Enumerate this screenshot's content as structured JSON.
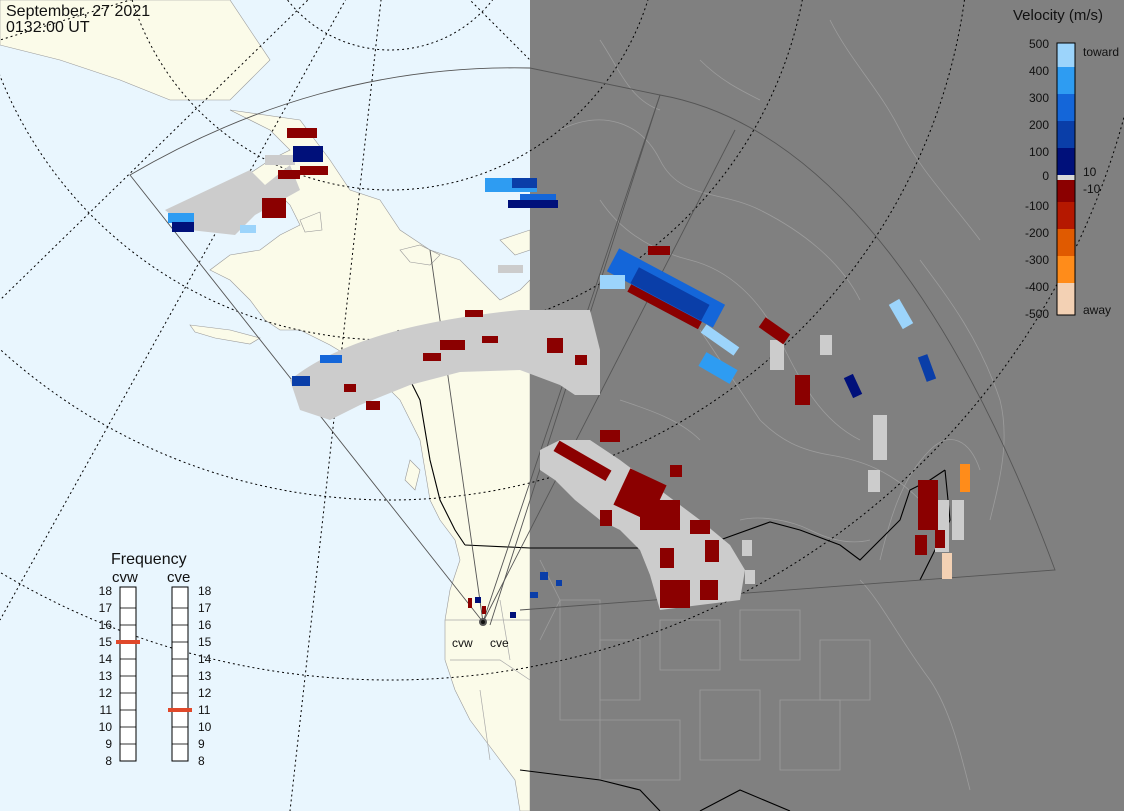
{
  "header": {
    "date": "September, 27 2021",
    "time": "0132:00 UT"
  },
  "colorbar": {
    "title": "Velocity (m/s)",
    "tick_labels": [
      "500",
      "400",
      "300",
      "200",
      "100",
      "10",
      "0",
      "-10",
      "-100",
      "-200",
      "-300",
      "-400",
      "-500"
    ],
    "toward_label": "toward",
    "away_label": "away",
    "colors": [
      "#f3d1b4",
      "#ff8c1a",
      "#e05a00",
      "#b51800",
      "#8b0000",
      "#d8d8d8",
      "#00107a",
      "#0a3ea8",
      "#1466d9",
      "#2e9cf2",
      "#9cd4fb"
    ]
  },
  "frequency": {
    "title": "Frequency",
    "left_radar": "cvw",
    "right_radar": "cve",
    "scale_labels": [
      "18",
      "17",
      "16",
      "15",
      "14",
      "13",
      "12",
      "11",
      "10",
      "9",
      "8"
    ],
    "left_value_mhz": 15,
    "right_value_mhz": 11,
    "marker_color": "#e0482a"
  },
  "radars": {
    "west": "cvw",
    "east": "cve"
  },
  "map_colors": {
    "ocean_day": "#e9f6fe",
    "land_day": "#fbfbe9",
    "night": "#808080",
    "gs_scatter": "#cccccc"
  }
}
